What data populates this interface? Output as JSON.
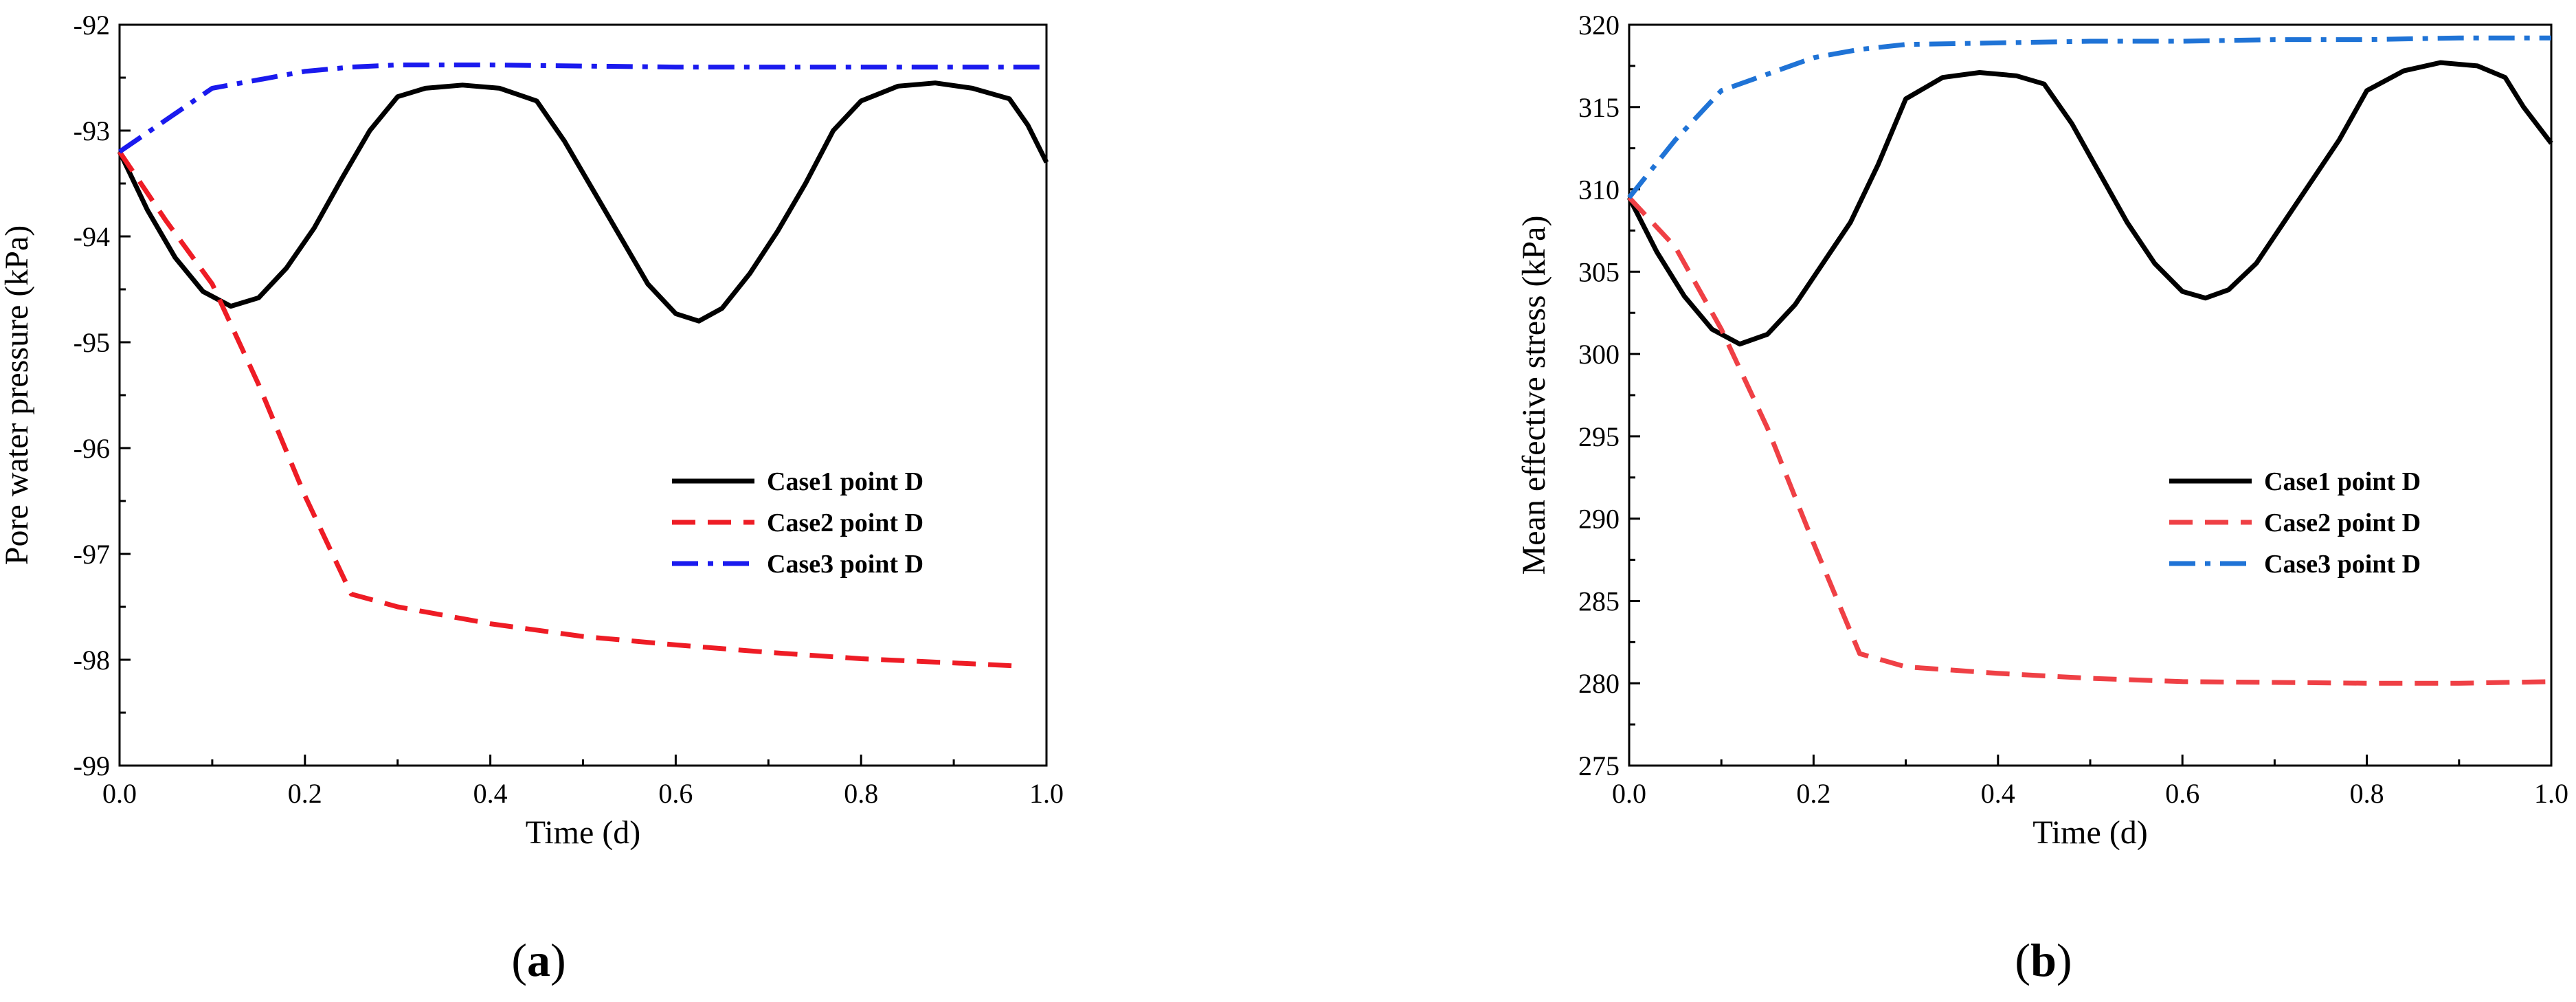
{
  "chart_data": [
    {
      "type": "line",
      "panel_label": "a",
      "xlabel": "Time (d)",
      "ylabel": "Pore water pressure (kPa)",
      "xlim": [
        0.0,
        1.0
      ],
      "ylim": [
        -99,
        -92
      ],
      "x_ticks": [
        "0.0",
        "0.2",
        "0.4",
        "0.6",
        "0.8",
        "1.0"
      ],
      "y_ticks": [
        "-99",
        "-98",
        "-97",
        "-96",
        "-95",
        "-94",
        "-93",
        "-92"
      ],
      "legend_position": "center-right",
      "series": [
        {
          "name": "Case1  point D",
          "color": "#000000",
          "style": "solid",
          "points": [
            [
              0.0,
              -93.2
            ],
            [
              0.03,
              -93.75
            ],
            [
              0.06,
              -94.2
            ],
            [
              0.09,
              -94.52
            ],
            [
              0.12,
              -94.66
            ],
            [
              0.15,
              -94.58
            ],
            [
              0.18,
              -94.3
            ],
            [
              0.21,
              -93.92
            ],
            [
              0.24,
              -93.45
            ],
            [
              0.27,
              -93.0
            ],
            [
              0.3,
              -92.68
            ],
            [
              0.33,
              -92.6
            ],
            [
              0.37,
              -92.57
            ],
            [
              0.41,
              -92.6
            ],
            [
              0.45,
              -92.72
            ],
            [
              0.48,
              -93.1
            ],
            [
              0.51,
              -93.55
            ],
            [
              0.54,
              -94.0
            ],
            [
              0.57,
              -94.45
            ],
            [
              0.6,
              -94.73
            ],
            [
              0.625,
              -94.8
            ],
            [
              0.65,
              -94.68
            ],
            [
              0.68,
              -94.35
            ],
            [
              0.71,
              -93.95
            ],
            [
              0.74,
              -93.5
            ],
            [
              0.77,
              -93.0
            ],
            [
              0.8,
              -92.72
            ],
            [
              0.84,
              -92.58
            ],
            [
              0.88,
              -92.55
            ],
            [
              0.92,
              -92.6
            ],
            [
              0.96,
              -92.7
            ],
            [
              0.98,
              -92.95
            ],
            [
              1.0,
              -93.3
            ]
          ]
        },
        {
          "name": "Case2  point D",
          "color": "#ee1c25",
          "style": "dashed",
          "points": [
            [
              0.0,
              -93.2
            ],
            [
              0.05,
              -93.85
            ],
            [
              0.1,
              -94.45
            ],
            [
              0.15,
              -95.4
            ],
            [
              0.2,
              -96.45
            ],
            [
              0.25,
              -97.38
            ],
            [
              0.3,
              -97.5
            ],
            [
              0.4,
              -97.66
            ],
            [
              0.5,
              -97.78
            ],
            [
              0.6,
              -97.86
            ],
            [
              0.7,
              -97.93
            ],
            [
              0.8,
              -97.99
            ],
            [
              0.9,
              -98.03
            ],
            [
              0.97,
              -98.06
            ]
          ]
        },
        {
          "name": "Case3  point D",
          "color": "#1a1aee",
          "style": "dashdot",
          "points": [
            [
              0.0,
              -93.2
            ],
            [
              0.05,
              -92.9
            ],
            [
              0.1,
              -92.6
            ],
            [
              0.15,
              -92.52
            ],
            [
              0.2,
              -92.44
            ],
            [
              0.25,
              -92.4
            ],
            [
              0.3,
              -92.38
            ],
            [
              0.4,
              -92.38
            ],
            [
              0.5,
              -92.39
            ],
            [
              0.6,
              -92.4
            ],
            [
              0.7,
              -92.4
            ],
            [
              0.8,
              -92.4
            ],
            [
              0.9,
              -92.4
            ],
            [
              1.0,
              -92.4
            ]
          ]
        }
      ]
    },
    {
      "type": "line",
      "panel_label": "b",
      "xlabel": "Time (d)",
      "ylabel": "Mean effective stress (kPa)",
      "xlim": [
        0.0,
        1.0
      ],
      "ylim": [
        275,
        320
      ],
      "x_ticks": [
        "0.0",
        "0.2",
        "0.4",
        "0.6",
        "0.8",
        "1.0"
      ],
      "y_ticks": [
        "275",
        "280",
        "285",
        "290",
        "295",
        "300",
        "305",
        "310",
        "315",
        "320"
      ],
      "legend_position": "center-right",
      "series": [
        {
          "name": "Case1  point D",
          "color": "#000000",
          "style": "solid",
          "points": [
            [
              0.0,
              309.5
            ],
            [
              0.03,
              306.2
            ],
            [
              0.06,
              303.5
            ],
            [
              0.09,
              301.5
            ],
            [
              0.12,
              300.6
            ],
            [
              0.15,
              301.2
            ],
            [
              0.18,
              303.0
            ],
            [
              0.21,
              305.5
            ],
            [
              0.24,
              308.0
            ],
            [
              0.27,
              311.5
            ],
            [
              0.3,
              315.5
            ],
            [
              0.34,
              316.8
            ],
            [
              0.38,
              317.1
            ],
            [
              0.42,
              316.9
            ],
            [
              0.45,
              316.4
            ],
            [
              0.48,
              314.0
            ],
            [
              0.51,
              311.0
            ],
            [
              0.54,
              308.0
            ],
            [
              0.57,
              305.5
            ],
            [
              0.6,
              303.8
            ],
            [
              0.625,
              303.4
            ],
            [
              0.65,
              303.9
            ],
            [
              0.68,
              305.5
            ],
            [
              0.71,
              308.0
            ],
            [
              0.74,
              310.5
            ],
            [
              0.77,
              313.0
            ],
            [
              0.8,
              316.0
            ],
            [
              0.84,
              317.2
            ],
            [
              0.88,
              317.7
            ],
            [
              0.92,
              317.5
            ],
            [
              0.95,
              316.8
            ],
            [
              0.97,
              315.0
            ],
            [
              1.0,
              312.8
            ]
          ]
        },
        {
          "name": "Case2  point D",
          "color": "#ef4045",
          "style": "dashed",
          "points": [
            [
              0.0,
              309.5
            ],
            [
              0.05,
              306.5
            ],
            [
              0.1,
              301.5
            ],
            [
              0.15,
              295.5
            ],
            [
              0.2,
              288.5
            ],
            [
              0.25,
              281.8
            ],
            [
              0.3,
              281.0
            ],
            [
              0.4,
              280.6
            ],
            [
              0.5,
              280.3
            ],
            [
              0.6,
              280.1
            ],
            [
              0.7,
              280.05
            ],
            [
              0.8,
              280.0
            ],
            [
              0.9,
              280.0
            ],
            [
              1.0,
              280.1
            ]
          ]
        },
        {
          "name": "Case3  point D",
          "color": "#1f73d6",
          "style": "dashdot",
          "points": [
            [
              0.0,
              309.5
            ],
            [
              0.05,
              313.0
            ],
            [
              0.1,
              316.0
            ],
            [
              0.15,
              317.0
            ],
            [
              0.2,
              318.0
            ],
            [
              0.25,
              318.5
            ],
            [
              0.3,
              318.8
            ],
            [
              0.4,
              318.9
            ],
            [
              0.5,
              319.0
            ],
            [
              0.6,
              319.0
            ],
            [
              0.7,
              319.1
            ],
            [
              0.8,
              319.1
            ],
            [
              0.9,
              319.2
            ],
            [
              1.0,
              319.2
            ]
          ]
        }
      ]
    }
  ]
}
